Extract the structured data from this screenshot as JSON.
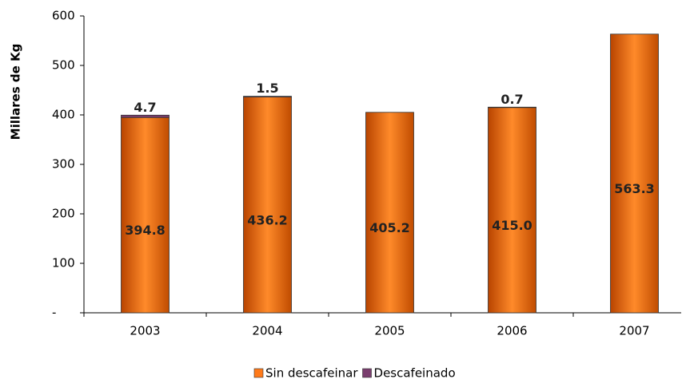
{
  "chart_data": {
    "type": "bar",
    "stacked": true,
    "y_label": "Millares de Kg",
    "categories": [
      "2003",
      "2004",
      "2005",
      "2006",
      "2007"
    ],
    "series": [
      {
        "name": "Sin descafeinar",
        "color": "#f07020",
        "values": [
          394.8,
          436.2,
          405.2,
          415.0,
          563.3
        ],
        "value_labels": [
          "394.8",
          "436.2",
          "405.2",
          "415.0",
          "563.3"
        ]
      },
      {
        "name": "Descafeinado",
        "color": "#7a3d6e",
        "values": [
          4.7,
          1.5,
          null,
          0.7,
          null
        ]
      }
    ],
    "ylim": [
      0,
      600
    ],
    "yticks": [
      {
        "value": 0,
        "label": "-"
      },
      100,
      200,
      300,
      400,
      500,
      600
    ]
  }
}
